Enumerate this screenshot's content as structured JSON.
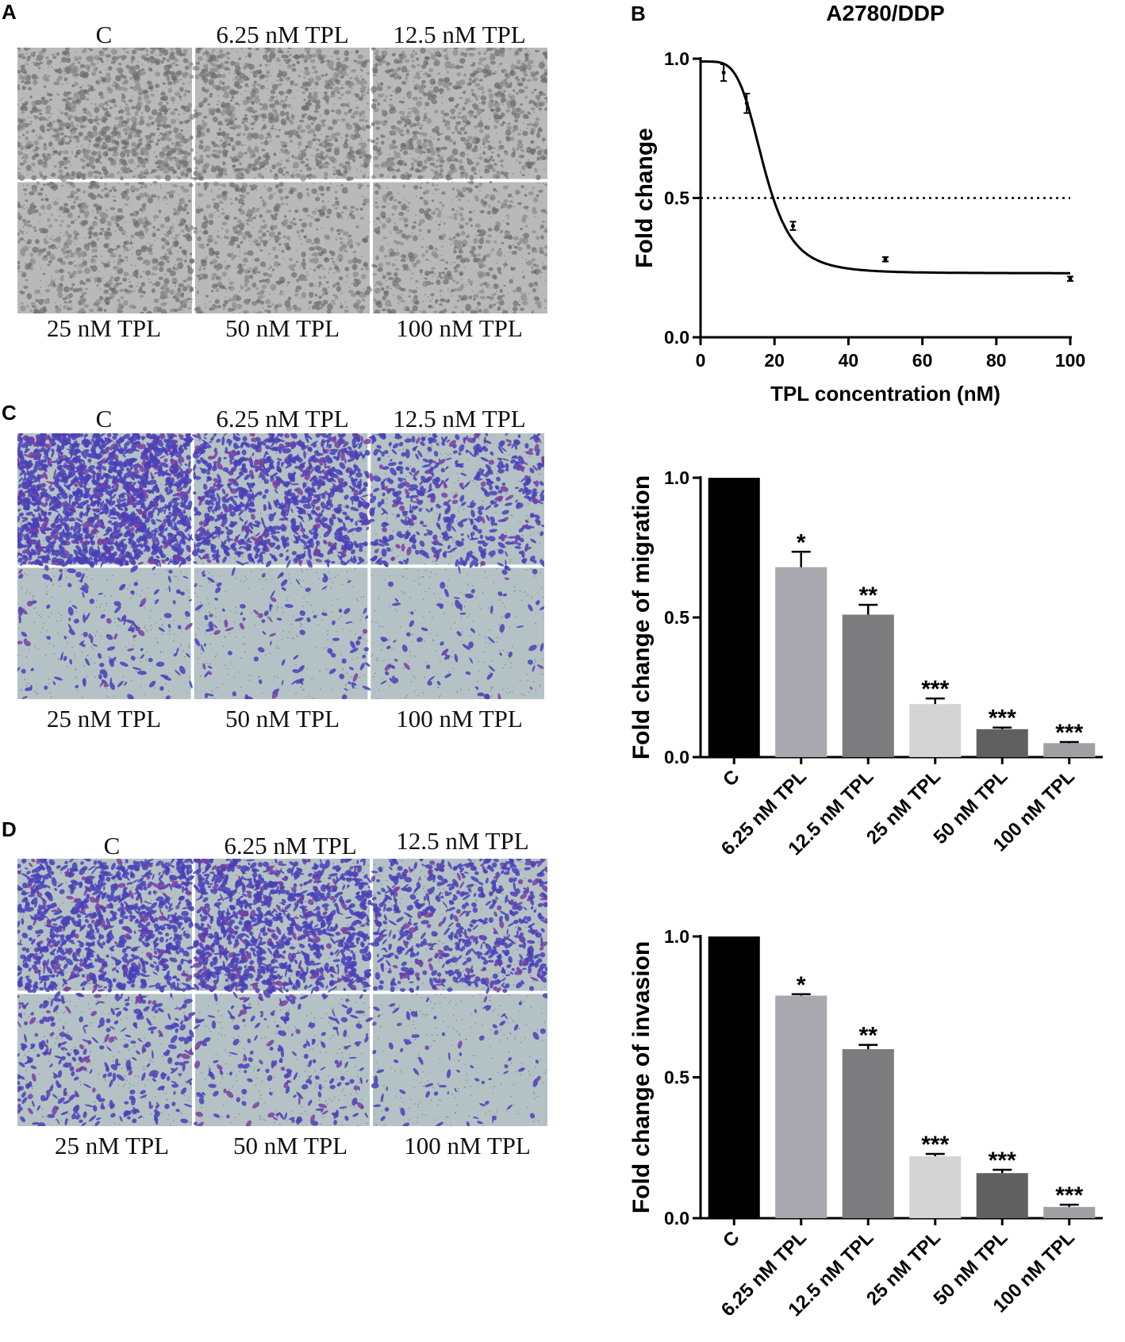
{
  "panels": {
    "A": {
      "letter": "A",
      "top_labels": [
        "C",
        "6.25 nM TPL",
        "12.5 nM TPL"
      ],
      "bottom_labels": [
        "25 nM TPL",
        "50 nM TPL",
        "100 nM TPL"
      ],
      "image_style": "brightfield"
    },
    "C": {
      "letter": "C",
      "top_labels": [
        "C",
        "6.25 nM TPL",
        "12.5 nM TPL"
      ],
      "bottom_labels": [
        "25 nM TPL",
        "50 nM TPL",
        "100 nM TPL"
      ],
      "image_style": "crystal-violet"
    },
    "D": {
      "letter": "D",
      "top_labels": [
        "C",
        "6.25 nM TPL",
        "12.5 nM TPL"
      ],
      "bottom_labels": [
        "25 nM TPL",
        "50 nM TPL",
        "100 nM TPL"
      ],
      "image_style": "crystal-violet"
    }
  },
  "chart_data": [
    {
      "panel": "B",
      "letter": "B",
      "type": "line",
      "title": "A2780/DDP",
      "xlabel": "TPL concentration (nM)",
      "ylabel": "Fold change",
      "xlim": [
        0,
        100
      ],
      "ylim": [
        0,
        1.0
      ],
      "x_ticks": [
        "0",
        "20",
        "40",
        "60",
        "80",
        "100"
      ],
      "y_ticks": [
        "0.0",
        "0.5",
        "1.0"
      ],
      "points": [
        {
          "x": 6.25,
          "y": 0.95,
          "err": 0.03
        },
        {
          "x": 12.5,
          "y": 0.84,
          "err": 0.035
        },
        {
          "x": 25,
          "y": 0.4,
          "err": 0.015
        },
        {
          "x": 50,
          "y": 0.28,
          "err": 0.008
        },
        {
          "x": 100,
          "y": 0.21,
          "err": 0.008
        }
      ],
      "fit": {
        "model": "four-parameter logistic",
        "top": 0.99,
        "bottom": 0.23,
        "ic50": 17.2,
        "hill": 4.5
      },
      "reference_line": {
        "y": 0.5,
        "style": "dotted"
      },
      "grid": false
    },
    {
      "panel": "C",
      "type": "bar",
      "title": "",
      "xlabel": "",
      "ylabel": "Fold change of migration",
      "ylim": [
        0,
        1.0
      ],
      "y_ticks": [
        "0.0",
        "0.5",
        "1.0"
      ],
      "categories": [
        "C",
        "6.25 nM TPL",
        "12.5 nM TPL",
        "25 nM TPL",
        "50 nM TPL",
        "100 nM TPL"
      ],
      "values": [
        1.0,
        0.68,
        0.51,
        0.19,
        0.1,
        0.05
      ],
      "errors": [
        0,
        0.055,
        0.035,
        0.02,
        0.006,
        0.004
      ],
      "significance": [
        "",
        "*",
        "**",
        "***",
        "***",
        "***"
      ],
      "colors": [
        "#000000",
        "#a8a8ae",
        "#7c7c7e",
        "#d4d4d4",
        "#606060",
        "#a0a0a4"
      ],
      "grid": false
    },
    {
      "panel": "D",
      "type": "bar",
      "title": "",
      "xlabel": "",
      "ylabel": "Fold change of invasion",
      "ylim": [
        0,
        1.0
      ],
      "y_ticks": [
        "0.0",
        "0.5",
        "1.0"
      ],
      "categories": [
        "C",
        "6.25 nM TPL",
        "12.5 nM TPL",
        "25 nM TPL",
        "50 nM TPL",
        "100 nM TPL"
      ],
      "values": [
        1.0,
        0.79,
        0.6,
        0.22,
        0.16,
        0.04
      ],
      "errors": [
        0,
        0.005,
        0.015,
        0.008,
        0.012,
        0.008
      ],
      "significance": [
        "",
        "*",
        "**",
        "***",
        "***",
        "***"
      ],
      "colors": [
        "#000000",
        "#a8a8ae",
        "#7c7c7e",
        "#d4d4d4",
        "#606060",
        "#a0a0a4"
      ],
      "grid": false
    }
  ],
  "letters": {
    "C": "C",
    "D": "D"
  }
}
